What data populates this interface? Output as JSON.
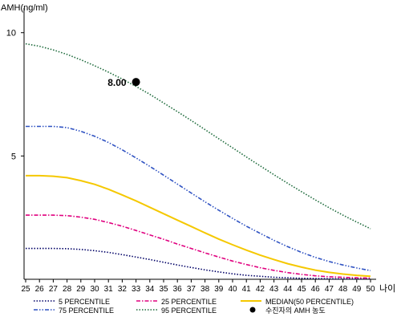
{
  "chart_data": {
    "type": "line",
    "ylabel": "AMH(ng/ml)",
    "xlabel": "나이",
    "xlim": [
      25,
      50
    ],
    "ylim": [
      0,
      11
    ],
    "x_ticks": [
      25,
      26,
      27,
      28,
      29,
      30,
      31,
      32,
      33,
      34,
      35,
      36,
      37,
      38,
      39,
      40,
      41,
      42,
      43,
      44,
      45,
      46,
      47,
      48,
      49,
      50
    ],
    "y_ticks": [
      5,
      10
    ],
    "x_tick_labels": [
      "25",
      "26",
      "27",
      "28",
      "29",
      "30",
      "31",
      "32",
      "33",
      "34",
      "35",
      "36",
      "37",
      "38",
      "39",
      "40",
      "41",
      "42",
      "43",
      "44",
      "45",
      "46",
      "47",
      "48",
      "49",
      "50"
    ],
    "y_tick_labels": [
      "5",
      "10"
    ],
    "grid": false,
    "legend_position": "bottom",
    "series": [
      {
        "name": "5 PERCENTILE",
        "color": "#000066",
        "style": "dotted",
        "x": [
          25,
          26,
          27,
          28,
          29,
          30,
          31,
          32,
          33,
          34,
          35,
          36,
          37,
          38,
          39,
          40,
          41,
          42,
          43,
          44,
          45,
          46,
          47,
          48,
          49,
          50
        ],
        "y": [
          1.25,
          1.25,
          1.25,
          1.24,
          1.21,
          1.16,
          1.09,
          1.0,
          0.9,
          0.8,
          0.69,
          0.58,
          0.48,
          0.38,
          0.3,
          0.22,
          0.16,
          0.12,
          0.08,
          0.06,
          0.04,
          0.03,
          0.02,
          0.02,
          0.02,
          0.02
        ]
      },
      {
        "name": "25 PERCENTILE",
        "color": "#e0007f",
        "style": "dash-dot",
        "x": [
          25,
          26,
          27,
          28,
          29,
          30,
          31,
          32,
          33,
          34,
          35,
          36,
          37,
          38,
          39,
          40,
          41,
          42,
          43,
          44,
          45,
          46,
          47,
          48,
          49,
          50
        ],
        "y": [
          2.6,
          2.6,
          2.6,
          2.58,
          2.52,
          2.43,
          2.3,
          2.15,
          1.98,
          1.8,
          1.62,
          1.43,
          1.25,
          1.07,
          0.9,
          0.74,
          0.6,
          0.47,
          0.36,
          0.27,
          0.2,
          0.14,
          0.1,
          0.08,
          0.06,
          0.05
        ]
      },
      {
        "name": "MEDIAN(50 PERCENTILE)",
        "color": "#f5c800",
        "style": "solid",
        "x": [
          25,
          26,
          27,
          28,
          29,
          30,
          31,
          32,
          33,
          34,
          35,
          36,
          37,
          38,
          39,
          40,
          41,
          42,
          43,
          44,
          45,
          46,
          47,
          48,
          49,
          50
        ],
        "y": [
          4.2,
          4.2,
          4.18,
          4.12,
          4.0,
          3.85,
          3.65,
          3.42,
          3.18,
          2.92,
          2.66,
          2.4,
          2.14,
          1.88,
          1.63,
          1.4,
          1.18,
          0.98,
          0.8,
          0.63,
          0.49,
          0.37,
          0.28,
          0.21,
          0.16,
          0.12
        ]
      },
      {
        "name": "75 PERCENTILE",
        "color": "#2f52c2",
        "style": "dash-dot-dot",
        "x": [
          25,
          26,
          27,
          28,
          29,
          30,
          31,
          32,
          33,
          34,
          35,
          36,
          37,
          38,
          39,
          40,
          41,
          42,
          43,
          44,
          45,
          46,
          47,
          48,
          49,
          50
        ],
        "y": [
          6.2,
          6.2,
          6.2,
          6.15,
          6.0,
          5.8,
          5.55,
          5.25,
          4.92,
          4.58,
          4.22,
          3.86,
          3.5,
          3.14,
          2.8,
          2.47,
          2.15,
          1.86,
          1.58,
          1.32,
          1.09,
          0.89,
          0.72,
          0.58,
          0.46,
          0.35
        ]
      },
      {
        "name": "95 PERCENTILE",
        "color": "#1e6b3c",
        "style": "dotted",
        "x": [
          25,
          26,
          27,
          28,
          29,
          30,
          31,
          32,
          33,
          34,
          35,
          36,
          37,
          38,
          39,
          40,
          41,
          42,
          43,
          44,
          45,
          46,
          47,
          48,
          49,
          50
        ],
        "y": [
          9.55,
          9.45,
          9.3,
          9.12,
          8.9,
          8.66,
          8.4,
          8.12,
          7.82,
          7.5,
          7.15,
          6.8,
          6.44,
          6.07,
          5.7,
          5.33,
          4.96,
          4.6,
          4.24,
          3.89,
          3.55,
          3.22,
          2.9,
          2.6,
          2.32,
          2.05
        ]
      }
    ],
    "highlight_point": {
      "name": "수진자의 AMH 농도",
      "x": 33,
      "y": 8.0,
      "label": "8.00",
      "color": "#000000"
    }
  }
}
